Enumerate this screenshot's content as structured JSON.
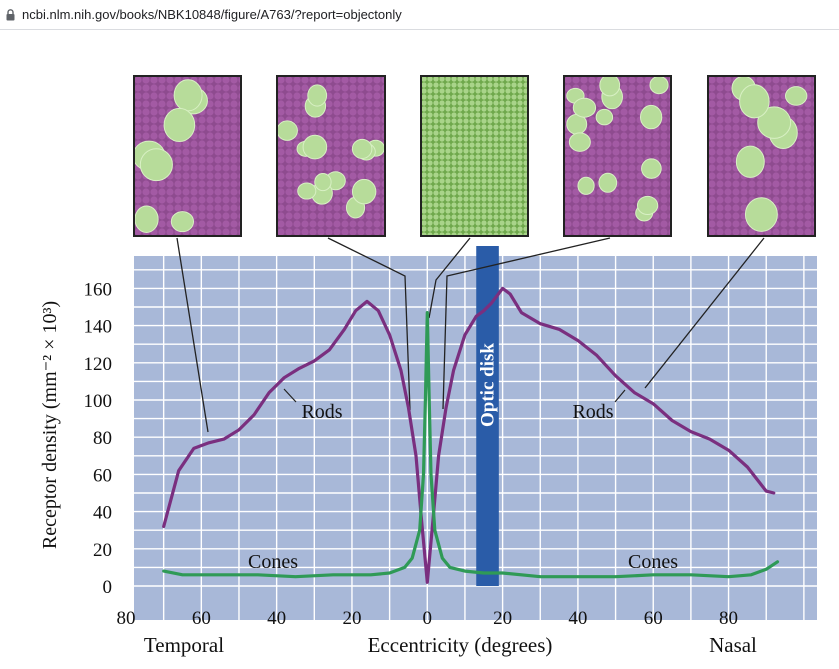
{
  "browser": {
    "url": "ncbi.nlm.nih.gov/books/NBK10848/figure/A763/?report=objectonly"
  },
  "colors": {
    "plot_bg": "#a8b8d8",
    "grid": "#ffffff",
    "rods": "#7a2f7f",
    "cones": "#2f9a56",
    "optic_disk": "#2a5ca8",
    "mosaic_bg": "#8e4b8f",
    "cone_cell": "#b7dc9a"
  },
  "chart_data": {
    "type": "line",
    "title": "",
    "xlabel": "Eccentricity (degrees)",
    "ylabel": "Receptor density (mm⁻² × 10³)",
    "xlim": [
      -80,
      100
    ],
    "ylim": [
      0,
      170
    ],
    "x_ticks": [
      -80,
      -60,
      -40,
      -20,
      0,
      20,
      40,
      60,
      80
    ],
    "x_tick_labels": [
      "80",
      "60",
      "40",
      "20",
      "0",
      "20",
      "40",
      "60",
      "80"
    ],
    "y_ticks": [
      0,
      20,
      40,
      60,
      80,
      100,
      120,
      140,
      160
    ],
    "y_tick_labels": [
      "0",
      "20",
      "40",
      "60",
      "80",
      "100",
      "120",
      "140",
      "160"
    ],
    "grid": true,
    "side_labels": {
      "left": "Temporal",
      "right": "Nasal"
    },
    "optic_disk": {
      "label": "Optic disk",
      "x_range": [
        13,
        19
      ]
    },
    "series": [
      {
        "name": "Rods",
        "label_left": "Rods",
        "label_right": "Rods",
        "points": [
          [
            -70,
            32
          ],
          [
            -66,
            62
          ],
          [
            -62,
            74
          ],
          [
            -58,
            77
          ],
          [
            -54,
            79
          ],
          [
            -50,
            84
          ],
          [
            -46,
            92
          ],
          [
            -42,
            104
          ],
          [
            -38,
            112
          ],
          [
            -34,
            117
          ],
          [
            -30,
            121
          ],
          [
            -26,
            127
          ],
          [
            -22,
            138
          ],
          [
            -19,
            148
          ],
          [
            -16,
            153
          ],
          [
            -13,
            148
          ],
          [
            -10,
            135
          ],
          [
            -7,
            116
          ],
          [
            -5,
            96
          ],
          [
            -3,
            70
          ],
          [
            -1.5,
            35
          ],
          [
            0,
            2
          ],
          [
            1.5,
            35
          ],
          [
            3,
            70
          ],
          [
            5,
            96
          ],
          [
            7,
            116
          ],
          [
            10,
            135
          ],
          [
            13,
            145
          ],
          [
            15,
            148
          ],
          [
            17,
            152
          ],
          [
            20,
            160
          ],
          [
            22,
            157
          ],
          [
            25,
            147
          ],
          [
            30,
            141
          ],
          [
            35,
            138
          ],
          [
            40,
            132
          ],
          [
            45,
            124
          ],
          [
            50,
            113
          ],
          [
            55,
            104
          ],
          [
            60,
            98
          ],
          [
            65,
            89
          ],
          [
            70,
            83
          ],
          [
            75,
            79
          ],
          [
            80,
            73
          ],
          [
            85,
            64
          ],
          [
            90,
            51
          ],
          [
            92,
            50
          ]
        ]
      },
      {
        "name": "Cones",
        "label_left": "Cones",
        "label_right": "Cones",
        "points": [
          [
            -70,
            8
          ],
          [
            -65,
            6
          ],
          [
            -55,
            6
          ],
          [
            -45,
            6
          ],
          [
            -35,
            5
          ],
          [
            -25,
            6
          ],
          [
            -15,
            6
          ],
          [
            -10,
            7
          ],
          [
            -6,
            10
          ],
          [
            -4,
            15
          ],
          [
            -2,
            30
          ],
          [
            -1,
            60
          ],
          [
            -0.5,
            100
          ],
          [
            0,
            147
          ],
          [
            0.5,
            100
          ],
          [
            1,
            60
          ],
          [
            2,
            30
          ],
          [
            4,
            15
          ],
          [
            6,
            10
          ],
          [
            10,
            8
          ],
          [
            15,
            7
          ],
          [
            20,
            7
          ],
          [
            30,
            5
          ],
          [
            40,
            5
          ],
          [
            50,
            5
          ],
          [
            60,
            6
          ],
          [
            70,
            6
          ],
          [
            80,
            5
          ],
          [
            86,
            6
          ],
          [
            90,
            9
          ],
          [
            93,
            13
          ]
        ]
      }
    ],
    "mosaic_panels": [
      {
        "name": "temporal-periphery",
        "x_pointer": -58
      },
      {
        "name": "temporal-near-fovea",
        "x_pointer": -4
      },
      {
        "name": "fovea",
        "x_pointer": 0
      },
      {
        "name": "nasal-near-fovea",
        "x_pointer": 5
      },
      {
        "name": "nasal-periphery",
        "x_pointer": 58
      }
    ]
  }
}
